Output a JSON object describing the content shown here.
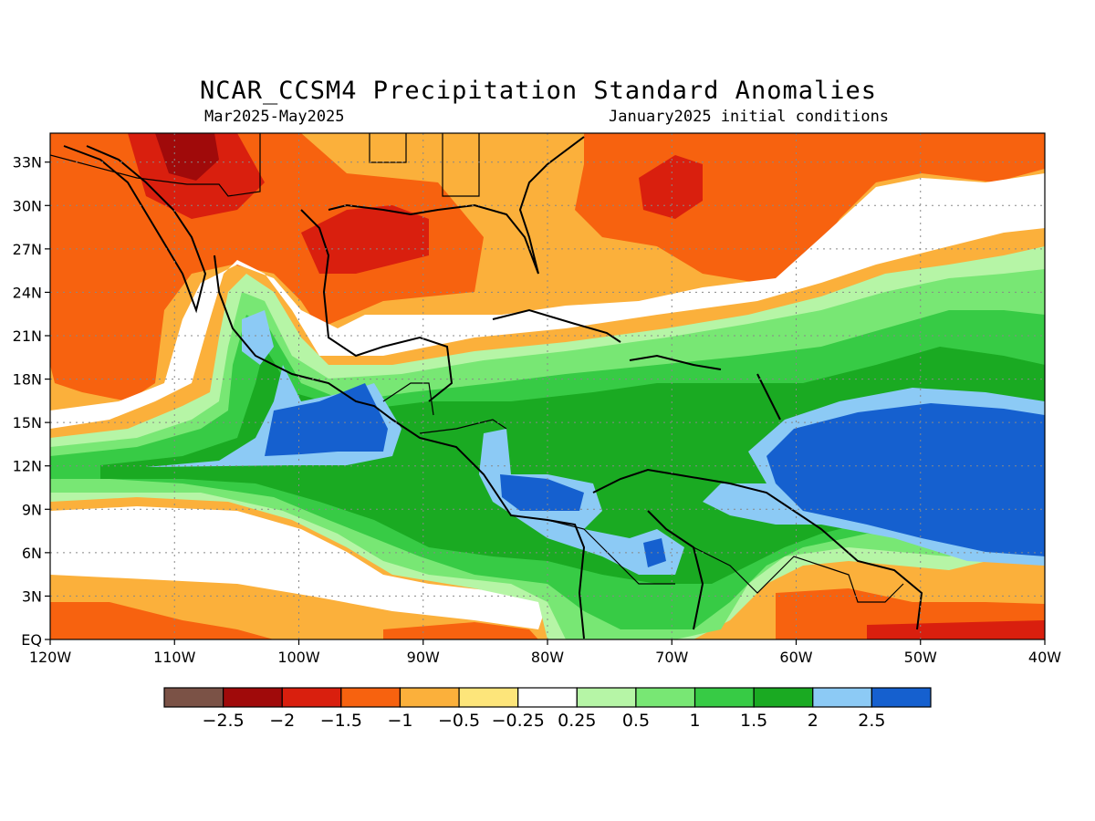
{
  "title": "NCAR_CCSM4 Precipitation Standard Anomalies",
  "period": "Mar2025-May2025",
  "initial_conditions": "January2025 initial conditions",
  "map": {
    "lon_range": [
      -120,
      -40
    ],
    "lat_range": [
      0,
      35
    ],
    "lon_ticks": [
      {
        "value": -120,
        "label": "120W"
      },
      {
        "value": -110,
        "label": "110W"
      },
      {
        "value": -100,
        "label": "100W"
      },
      {
        "value": -90,
        "label": "90W"
      },
      {
        "value": -80,
        "label": "80W"
      },
      {
        "value": -70,
        "label": "70W"
      },
      {
        "value": -60,
        "label": "60W"
      },
      {
        "value": -50,
        "label": "50W"
      },
      {
        "value": -40,
        "label": "40W"
      }
    ],
    "lat_ticks": [
      {
        "value": 0,
        "label": "EQ"
      },
      {
        "value": 3,
        "label": "3N"
      },
      {
        "value": 6,
        "label": "6N"
      },
      {
        "value": 9,
        "label": "9N"
      },
      {
        "value": 12,
        "label": "12N"
      },
      {
        "value": 15,
        "label": "15N"
      },
      {
        "value": 18,
        "label": "18N"
      },
      {
        "value": 21,
        "label": "21N"
      },
      {
        "value": 24,
        "label": "24N"
      },
      {
        "value": 27,
        "label": "27N"
      },
      {
        "value": 30,
        "label": "30N"
      },
      {
        "value": 33,
        "label": "33N"
      }
    ],
    "grid": true
  },
  "colorbar": {
    "colors": [
      "#7b5246",
      "#a00a0a",
      "#d91f0e",
      "#f7620f",
      "#fbb03b",
      "#fde57a",
      "#ffffff",
      "#b6f5a6",
      "#78e774",
      "#37cb45",
      "#1aaa22",
      "#8ccaf5",
      "#1560cf"
    ],
    "labels": [
      "-2.5",
      "-2",
      "-1.5",
      "-1",
      "-0.5",
      "-0.25",
      "0.25",
      "0.5",
      "1",
      "1.5",
      "2",
      "2.5"
    ]
  }
}
